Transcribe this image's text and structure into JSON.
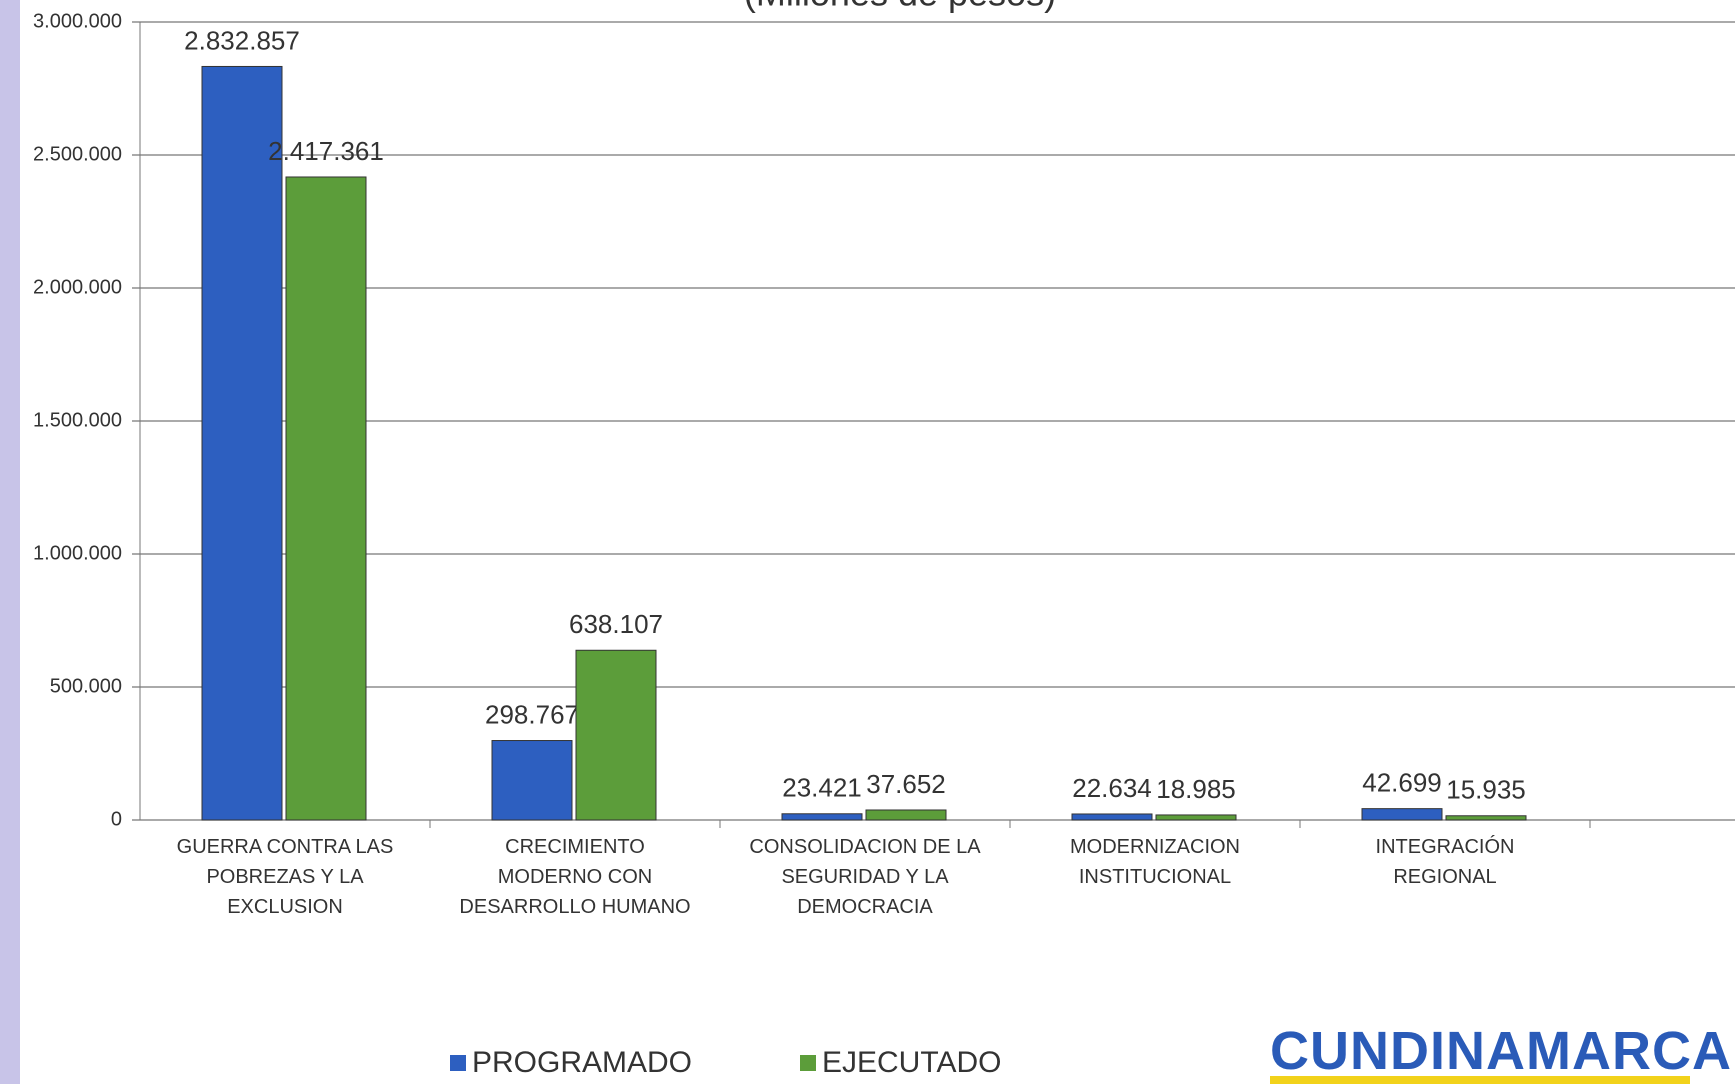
{
  "chart_data": {
    "type": "bar",
    "subtitle": "(Millones de pesos)",
    "categories": [
      "GUERRA CONTRA LAS\nPOBREZAS Y LA\nEXCLUSION",
      "CRECIMIENTO\nMODERNO CON\nDESARROLLO HUMANO",
      "CONSOLIDACION DE LA\nSEGURIDAD Y LA\nDEMOCRACIA",
      "MODERNIZACION\nINSTITUCIONAL",
      "INTEGRACIÓN\nREGIONAL"
    ],
    "series": [
      {
        "name": "PROGRAMADO",
        "color": "#2d5fc0",
        "values": [
          2832857,
          298767,
          23421,
          22634,
          42699
        ],
        "value_labels": [
          "2.832.857",
          "298.767",
          "23.421",
          "22.634",
          "42.699"
        ]
      },
      {
        "name": "EJECUTADO",
        "color": "#5c9d3a",
        "values": [
          2417361,
          638107,
          37652,
          18985,
          15935
        ],
        "value_labels": [
          "2.417.361",
          "638.107",
          "37.652",
          "18.985",
          "15.935"
        ]
      }
    ],
    "ylim": [
      0,
      3000000
    ],
    "yticks": [
      0,
      {
        "value": 500000,
        "label": "500.000"
      },
      {
        "value": 1000000,
        "label": "1.000.000"
      },
      {
        "value": 1500000,
        "label": "1.500.000"
      },
      {
        "value": 2000000,
        "label": "2.000.000"
      },
      {
        "value": 2500000,
        "label": "2.500.000"
      },
      {
        "value": 3000000,
        "label": "3.000.000"
      }
    ],
    "grid": true,
    "legend": "bottom",
    "logo_text": "CUNDINAMARCA"
  }
}
